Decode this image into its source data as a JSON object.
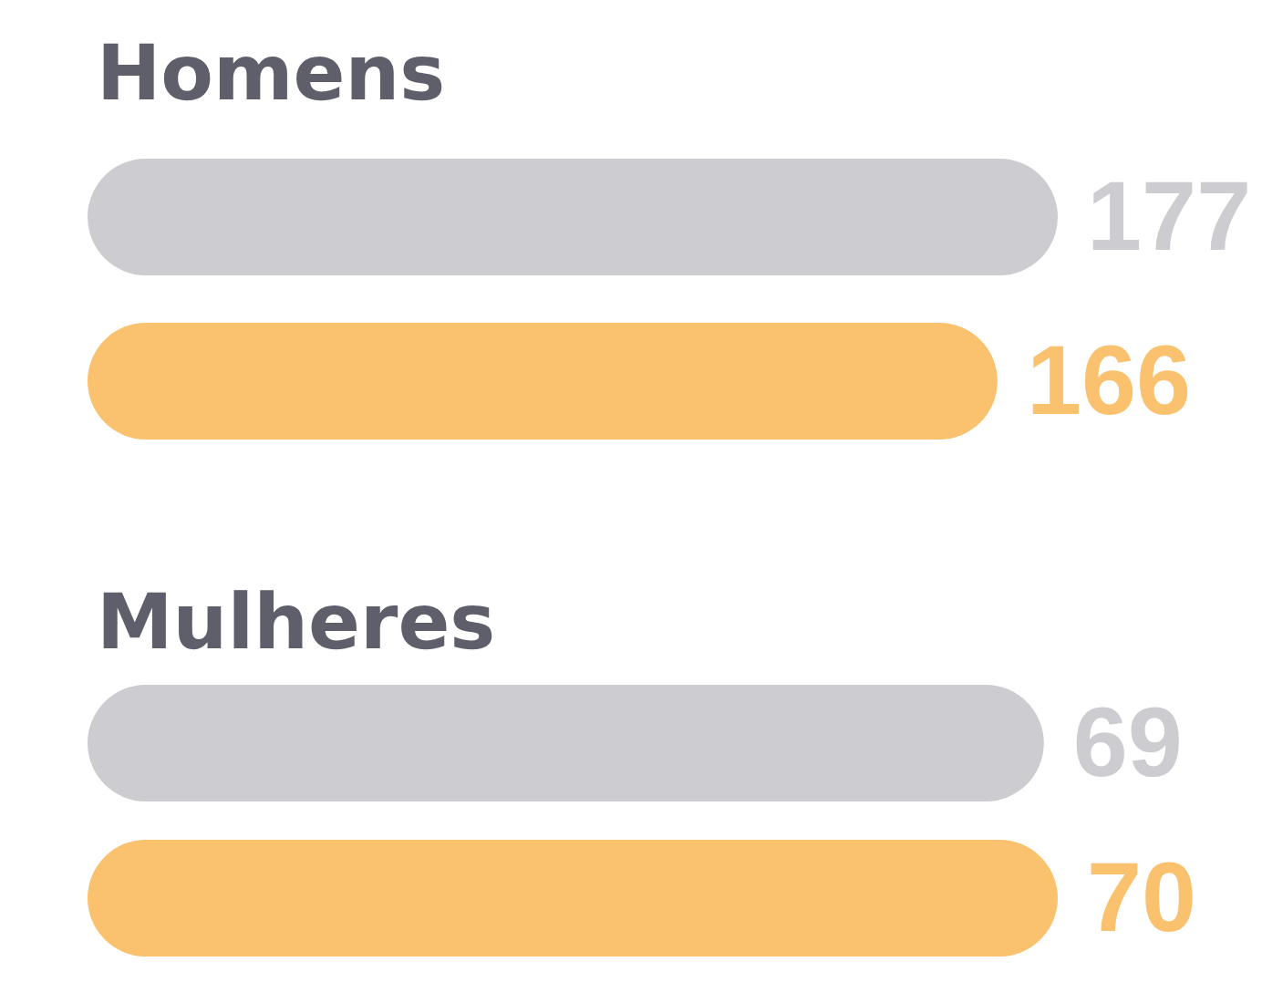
{
  "chart_data": [
    {
      "type": "bar",
      "title": "Homens",
      "orientation": "horizontal",
      "categories": [
        null,
        null
      ],
      "values": [
        177,
        166
      ],
      "colors": [
        "#cdcdd1",
        "#fac16e"
      ],
      "data_labels": true,
      "tick_labels": false
    },
    {
      "type": "bar",
      "title": "Mulheres",
      "orientation": "horizontal",
      "categories": [
        null,
        null
      ],
      "values": [
        69,
        70
      ],
      "colors": [
        "#cdcdd1",
        "#fac16e"
      ],
      "data_labels": true,
      "tick_labels": false
    }
  ]
}
